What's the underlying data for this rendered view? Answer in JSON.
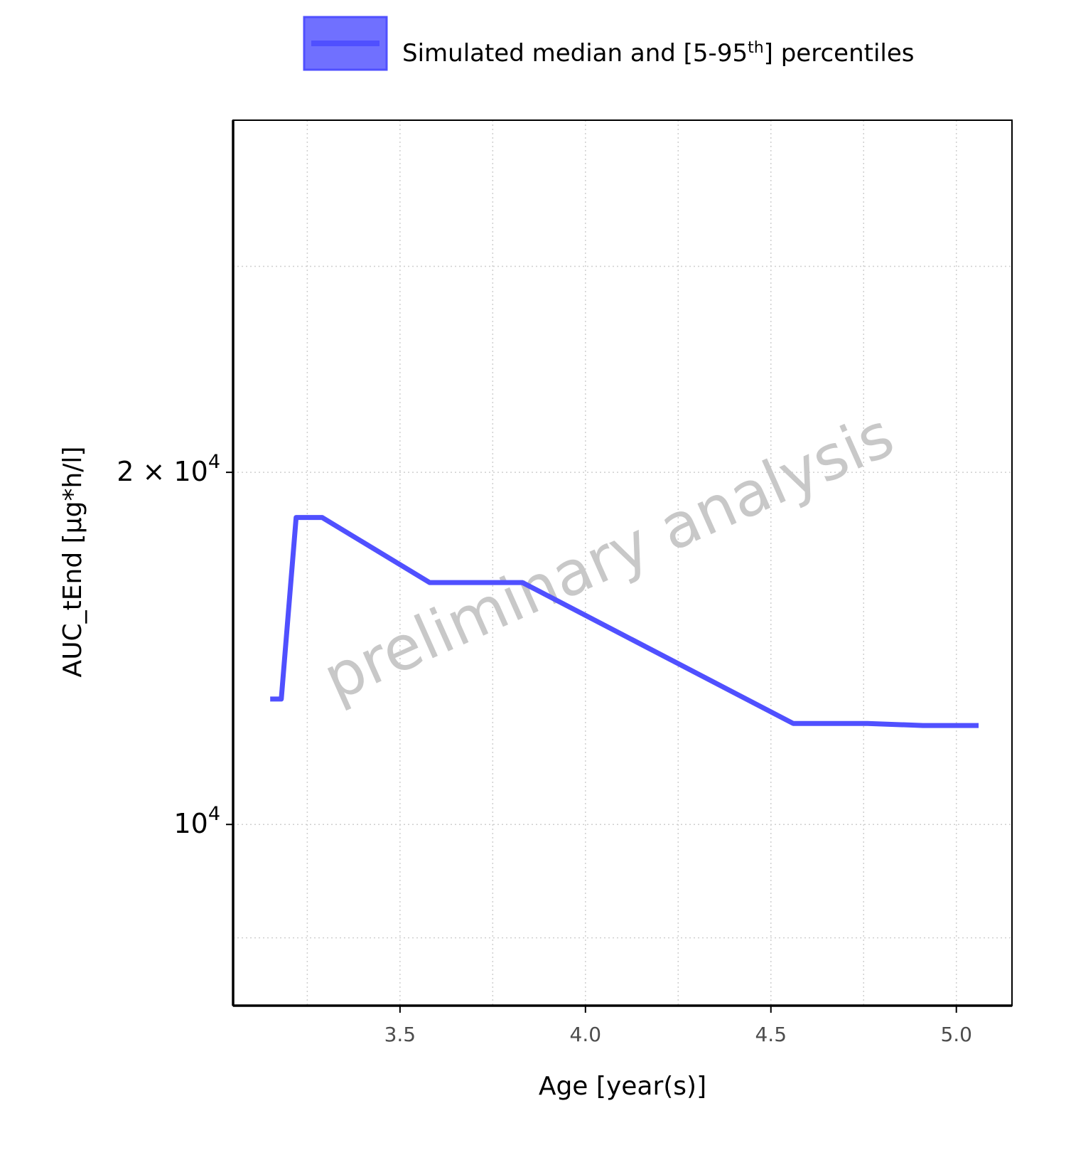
{
  "chart_data": {
    "type": "line",
    "title": "",
    "xlabel": "Age [year(s)]",
    "ylabel": "AUC_tEnd [µg*h/l]",
    "y_scale": "log",
    "xlim": [
      3.05,
      5.15
    ],
    "ylim": [
      7000,
      40000
    ],
    "x_ticks": [
      3.5,
      4.0,
      4.5,
      5.0
    ],
    "x_tick_labels": [
      "3.5",
      "4.0",
      "4.5",
      "5.0"
    ],
    "y_tick_labels": [
      {
        "value": 20000,
        "mantissa": "2",
        "times": "×",
        "base": "10",
        "exp": "4"
      },
      {
        "value": 10000,
        "mantissa": "",
        "times": "",
        "base": "10",
        "exp": "4"
      }
    ],
    "y_minor_gridlines": [
      30000,
      8000,
      7000,
      6000,
      5000
    ],
    "grid": "dotted",
    "legend_position": "top",
    "series": [
      {
        "name": "Simulated median and [5-95th] percentiles",
        "color": "#5050ff",
        "x": [
          3.15,
          3.18,
          3.22,
          3.29,
          3.58,
          3.83,
          4.56,
          4.76,
          4.91,
          5.06
        ],
        "y": [
          12800,
          12800,
          18300,
          18300,
          16100,
          16100,
          12200,
          12200,
          12150,
          12150
        ]
      }
    ],
    "legend": {
      "label_main": "Simulated median and [5-95",
      "label_sup": "th",
      "label_end": "] percentiles",
      "swatch_fill": "#7070ff",
      "swatch_border": "#5050ff",
      "line_color": "#5050ff"
    },
    "watermark": "preliminary analysis"
  }
}
